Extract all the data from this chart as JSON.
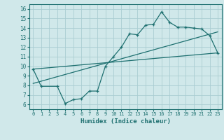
{
  "xlabel": "Humidex (Indice chaleur)",
  "xlim": [
    -0.5,
    23.5
  ],
  "ylim": [
    5.5,
    16.5
  ],
  "xticks": [
    0,
    1,
    2,
    3,
    4,
    5,
    6,
    7,
    8,
    9,
    10,
    11,
    12,
    13,
    14,
    15,
    16,
    17,
    18,
    19,
    20,
    21,
    22,
    23
  ],
  "yticks": [
    6,
    7,
    8,
    9,
    10,
    11,
    12,
    13,
    14,
    15,
    16
  ],
  "background_color": "#d0e8ea",
  "grid_color": "#aacdd2",
  "line_color": "#1e7070",
  "curve1_x": [
    0,
    1,
    3,
    4,
    5,
    6,
    7,
    8,
    9,
    10,
    11,
    12,
    13,
    14,
    15,
    16,
    17,
    18,
    19,
    20,
    21,
    22,
    23
  ],
  "curve1_y": [
    9.7,
    7.9,
    7.9,
    6.1,
    6.5,
    6.6,
    7.4,
    7.4,
    10.0,
    11.0,
    12.0,
    13.4,
    13.3,
    14.3,
    14.4,
    15.7,
    14.6,
    14.1,
    14.1,
    14.0,
    13.9,
    13.2,
    11.4
  ],
  "trend1_x": [
    0,
    23
  ],
  "trend1_y": [
    9.7,
    11.4
  ],
  "trend2_x": [
    0,
    23
  ],
  "trend2_y": [
    8.2,
    13.6
  ]
}
